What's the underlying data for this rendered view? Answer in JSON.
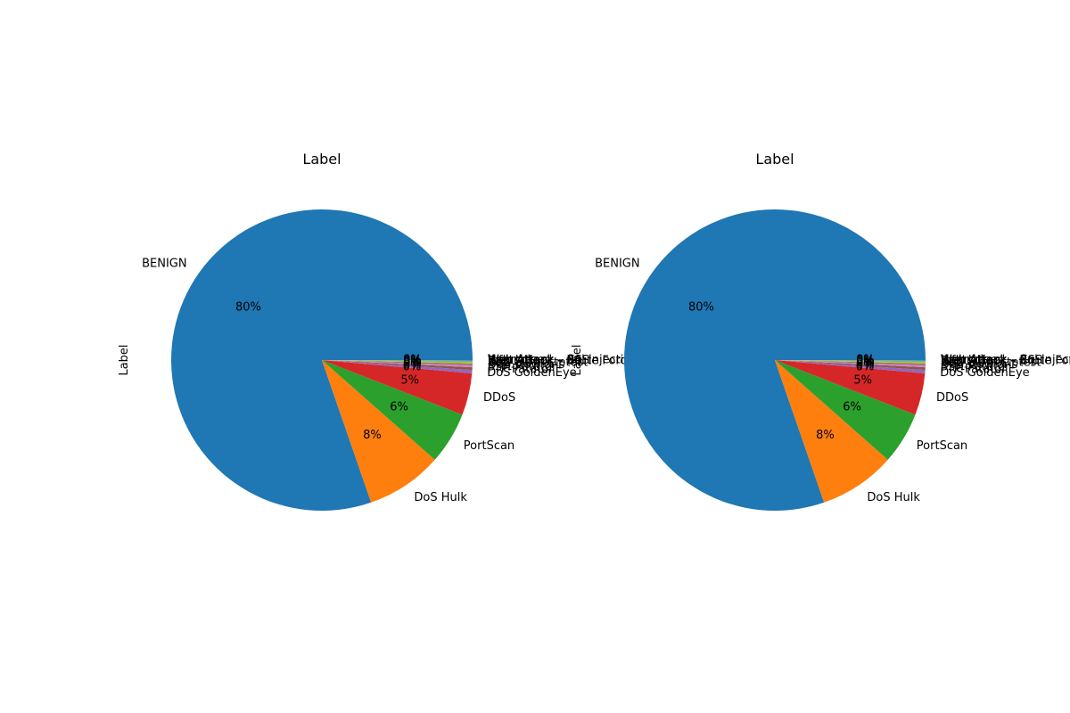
{
  "chart_data": [
    {
      "type": "pie",
      "title": "Label",
      "ylabel": "Label",
      "categories": [
        "BENIGN",
        "DoS Hulk",
        "PortScan",
        "DDoS",
        "DoS GoldenEye",
        "FTP-Patator",
        "SSH-Patator",
        "DoS slowloris",
        "DoS Slowhttptest",
        "Bot",
        "Web Attack – Brute Force",
        "Web Attack – XSS",
        "Infiltration",
        "Web Attack – Sql Injection",
        "Heartbleed"
      ],
      "values": [
        80.3,
        8.2,
        5.6,
        4.5,
        0.36,
        0.28,
        0.21,
        0.2,
        0.19,
        0.07,
        0.05,
        0.02,
        0.01,
        0.01,
        0.01
      ],
      "percent_labels": [
        "80%",
        "8%",
        "6%",
        "5%",
        "0%",
        "0%",
        "0%",
        "0%",
        "0%",
        "0%",
        "0%",
        "0%",
        "0%",
        "0%",
        "0%"
      ],
      "colors": [
        "#1f77b4",
        "#ff7f0e",
        "#2ca02c",
        "#d62728",
        "#9467bd",
        "#8c564b",
        "#e377c2",
        "#7f7f7f",
        "#bcbd22",
        "#17becf",
        "#1f77b4",
        "#ff7f0e",
        "#2ca02c",
        "#d62728",
        "#9467bd"
      ]
    },
    {
      "type": "pie",
      "title": "Label",
      "ylabel": "Label",
      "categories": [
        "BENIGN",
        "DoS Hulk",
        "PortScan",
        "DDoS",
        "DoS GoldenEye",
        "FTP-Patator",
        "SSH-Patator",
        "DoS slowloris",
        "DoS Slowhttptest",
        "Bot",
        "Web Attack – Brute Force",
        "Web Attack – XSS",
        "Infiltration",
        "Web Attack – Sql Injection",
        "Heartbleed"
      ],
      "values": [
        80.3,
        8.2,
        5.6,
        4.5,
        0.36,
        0.28,
        0.21,
        0.2,
        0.19,
        0.07,
        0.05,
        0.02,
        0.01,
        0.01,
        0.01
      ],
      "percent_labels": [
        "80%",
        "8%",
        "6%",
        "5%",
        "0%",
        "0%",
        "0%",
        "0%",
        "0%",
        "0%",
        "0%",
        "0%",
        "0%",
        "0%",
        "0%"
      ],
      "colors": [
        "#1f77b4",
        "#ff7f0e",
        "#2ca02c",
        "#d62728",
        "#9467bd",
        "#8c564b",
        "#e377c2",
        "#7f7f7f",
        "#bcbd22",
        "#17becf",
        "#1f77b4",
        "#ff7f0e",
        "#2ca02c",
        "#d62728",
        "#9467bd"
      ]
    }
  ]
}
